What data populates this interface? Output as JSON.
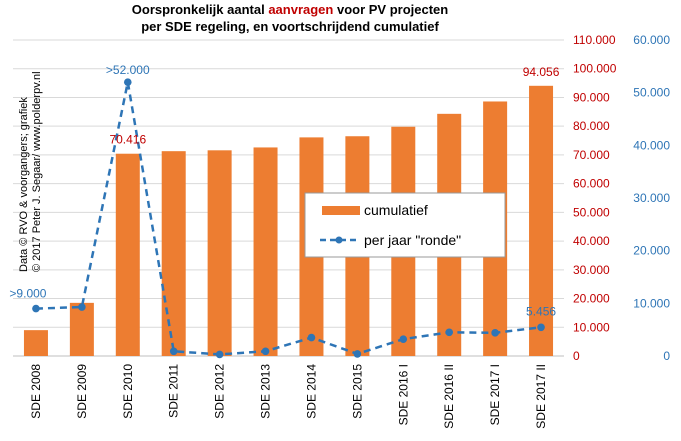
{
  "title": {
    "line1_pre": "Oorspronkelijk  aantal ",
    "line1_highlight": "aanvragen",
    "line1_post": " voor PV projecten",
    "line2": "per SDE  regeling,  en voortschrijdend  cumulatief"
  },
  "credit": {
    "line1": "Data © RVO & voorgangers; grafiek",
    "line2": "© 2017 Peter J. Segaar/ www.polderpv.nl"
  },
  "colors": {
    "bars": "#ed7d31",
    "line": "#2e75b6",
    "left_axis_text": "#c00000",
    "right_axis_text": "#2e75b6",
    "gridlines": "#d9d9d9"
  },
  "chart_data": {
    "type": "bar",
    "categories": [
      "SDE 2008",
      "SDE 2009",
      "SDE 2010",
      "SDE 2011",
      "SDE 2012",
      "SDE 2013",
      "SDE 2014",
      "SDE 2015",
      "SDE 2016 I",
      "SDE 2016 II",
      "SDE 2017 I",
      "SDE 2017 II"
    ],
    "series": [
      {
        "name": "cumulatief",
        "type": "bar",
        "axis": "left",
        "values": [
          9000,
          18500,
          70416,
          71300,
          71600,
          72600,
          76100,
          76500,
          79800,
          84300,
          88600,
          94056
        ]
      },
      {
        "name": "per jaar \"ronde\"",
        "type": "line",
        "axis": "right",
        "style": "dashed with markers",
        "values": [
          9000,
          9300,
          52000,
          900,
          300,
          900,
          3500,
          400,
          3200,
          4500,
          4400,
          5456
        ]
      }
    ],
    "y_left": {
      "min": 0,
      "max": 110000,
      "ticks": [
        "0",
        "10.000",
        "20.000",
        "30.000",
        "40.000",
        "50.000",
        "60.000",
        "70.000",
        "80.000",
        "90.000",
        "100.000",
        "110.000"
      ]
    },
    "y_right": {
      "min": 0,
      "max": 60000,
      "ticks": [
        "0",
        "10.000",
        "20.000",
        "30.000",
        "40.000",
        "50.000",
        "60.000"
      ]
    },
    "annotations": [
      {
        "text": ">9.000",
        "series": "per jaar \"ronde\"",
        "index": 0
      },
      {
        "text": ">52.000",
        "series": "per jaar \"ronde\"",
        "index": 2
      },
      {
        "text": "70.416",
        "series": "cumulatief",
        "index": 2
      },
      {
        "text": "94.056",
        "series": "cumulatief",
        "index": 11
      },
      {
        "text": "5.456",
        "series": "per jaar \"ronde\"",
        "index": 11
      }
    ],
    "grid": true,
    "legend_position": "center-right"
  }
}
